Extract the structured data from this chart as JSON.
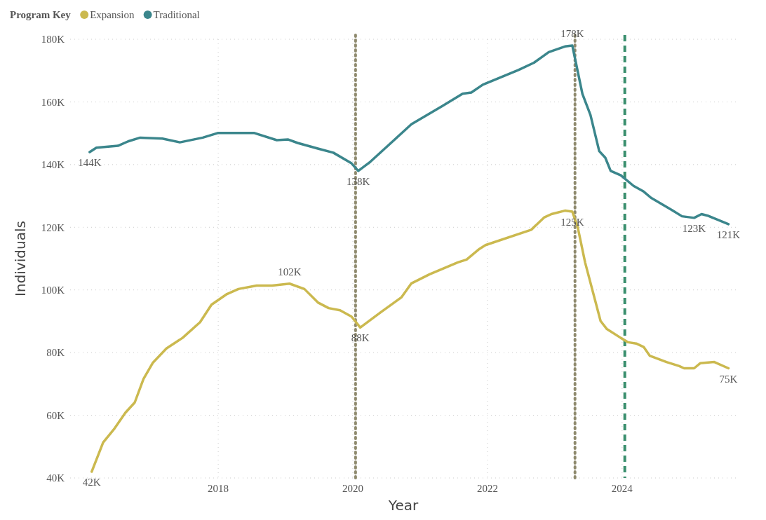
{
  "chart_data": {
    "type": "line",
    "legend_title": "Program Key",
    "legend": "top left",
    "xlabel": "Year",
    "ylabel": "Individuals",
    "xlim": [
      2015.8,
      2025.7
    ],
    "xticks": [
      2018,
      2020,
      2022,
      2024
    ],
    "ylim": [
      40,
      180
    ],
    "yticks": [
      {
        "value": 40,
        "label": "40K"
      },
      {
        "value": 60,
        "label": "60K"
      },
      {
        "value": 80,
        "label": "80K"
      },
      {
        "value": 100,
        "label": "100K"
      },
      {
        "value": 120,
        "label": "120K"
      },
      {
        "value": 140,
        "label": "140K"
      },
      {
        "value": 160,
        "label": "160K"
      },
      {
        "value": 180,
        "label": "180K"
      }
    ],
    "grid": true,
    "ref_lines": [
      {
        "axis": "x",
        "value": 2020.04,
        "color": "#8f8a6e",
        "line_style": "dotted"
      },
      {
        "axis": "x",
        "value": 2023.3,
        "color": "#8f8a6e",
        "line_style": "dotted"
      },
      {
        "axis": "x",
        "value": 2024.04,
        "color": "#3a8f6e",
        "line_style": "dashed"
      }
    ],
    "series": [
      {
        "name": "Expansion",
        "color": "#cbb94f",
        "x": [
          2016.12,
          2016.29,
          2016.46,
          2016.62,
          2016.76,
          2016.89,
          2017.03,
          2017.23,
          2017.47,
          2017.73,
          2017.9,
          2018.13,
          2018.3,
          2018.57,
          2018.8,
          2019.06,
          2019.28,
          2019.48,
          2019.64,
          2019.81,
          2019.98,
          2020.11,
          2020.41,
          2020.72,
          2020.87,
          2021.14,
          2021.56,
          2021.69,
          2021.88,
          2021.97,
          2022.65,
          2022.84,
          2022.95,
          2023.15,
          2023.26,
          2023.34,
          2023.45,
          2023.68,
          2023.77,
          2023.98,
          2024.09,
          2024.21,
          2024.32,
          2024.41,
          2024.66,
          2024.85,
          2024.92,
          2025.07,
          2025.16,
          2025.37,
          2025.58
        ],
        "values": [
          42,
          51.3,
          55.8,
          60.8,
          64.1,
          71.6,
          76.8,
          81.3,
          84.7,
          89.7,
          95.3,
          98.7,
          100.3,
          101.4,
          101.4,
          102,
          100.3,
          96,
          94.2,
          93.5,
          91.5,
          88,
          92.8,
          97.6,
          102.1,
          105,
          108.8,
          109.7,
          113.1,
          114.3,
          119.2,
          123.1,
          124.2,
          125.3,
          125,
          120.1,
          108.8,
          90.1,
          87.6,
          84.7,
          83.3,
          82.9,
          81.8,
          79,
          77,
          75.7,
          75,
          75,
          76.6,
          77,
          75
        ],
        "value_labels": [
          "42K",
          null,
          null,
          null,
          null,
          null,
          null,
          null,
          null,
          null,
          null,
          null,
          null,
          null,
          null,
          "102K",
          null,
          null,
          null,
          null,
          null,
          "88K",
          null,
          null,
          null,
          null,
          null,
          null,
          null,
          null,
          null,
          null,
          null,
          null,
          "125K",
          null,
          null,
          null,
          null,
          null,
          null,
          null,
          null,
          null,
          null,
          null,
          null,
          null,
          null,
          null,
          "75K"
        ]
      },
      {
        "name": "Traditional",
        "color": "#3b868c",
        "x": [
          2016.09,
          2016.19,
          2016.51,
          2016.66,
          2016.84,
          2017.17,
          2017.43,
          2017.77,
          2018.0,
          2018.53,
          2018.87,
          2019.04,
          2019.18,
          2019.48,
          2019.71,
          2019.98,
          2020.08,
          2020.26,
          2020.56,
          2020.87,
          2021.33,
          2021.63,
          2021.76,
          2021.93,
          2022.46,
          2022.69,
          2022.91,
          2023.15,
          2023.26,
          2023.41,
          2023.53,
          2023.66,
          2023.75,
          2023.83,
          2023.98,
          2024.17,
          2024.32,
          2024.43,
          2024.74,
          2024.89,
          2025.07,
          2025.18,
          2025.27,
          2025.58
        ],
        "values": [
          144,
          145.4,
          146,
          147.4,
          148.6,
          148.3,
          147.1,
          148.6,
          150.1,
          150.1,
          147.8,
          148,
          146.9,
          145.1,
          143.8,
          140.4,
          138,
          140.9,
          146.8,
          152.9,
          158.7,
          162.6,
          163,
          165.5,
          170.2,
          172.5,
          175.9,
          177.7,
          178,
          162.6,
          155.8,
          144.3,
          142.2,
          138,
          136.6,
          133.2,
          131.4,
          129.4,
          125.5,
          123.5,
          123,
          124.2,
          123.7,
          121
        ],
        "value_labels": [
          "144K",
          null,
          null,
          null,
          null,
          null,
          null,
          null,
          null,
          null,
          null,
          null,
          null,
          null,
          null,
          null,
          "138K",
          null,
          null,
          null,
          null,
          null,
          null,
          null,
          null,
          null,
          null,
          null,
          "178K",
          null,
          null,
          null,
          null,
          null,
          null,
          null,
          null,
          null,
          null,
          null,
          "123K",
          null,
          null,
          "121K"
        ]
      }
    ]
  }
}
